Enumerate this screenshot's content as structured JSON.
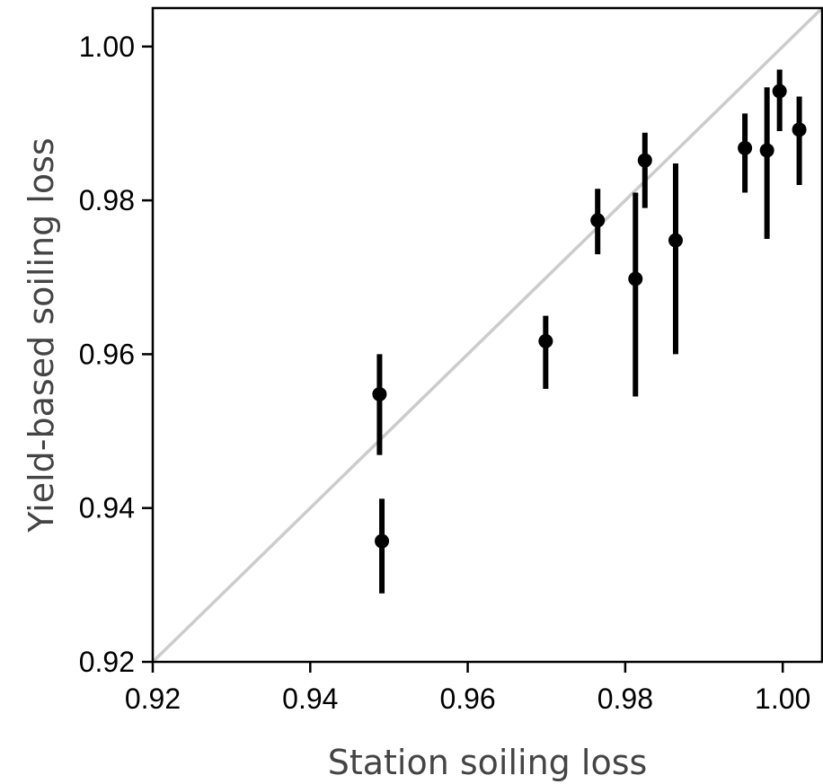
{
  "chart_data": {
    "type": "scatter",
    "xlabel": "Station soiling loss",
    "ylabel": "Yield-based soiling loss",
    "xlim": [
      0.92,
      1.005
    ],
    "ylim": [
      0.92,
      1.005
    ],
    "x_ticks": [
      "0.92",
      "0.94",
      "0.96",
      "0.98",
      "1.00"
    ],
    "y_ticks": [
      "0.92",
      "0.94",
      "0.96",
      "0.98",
      "1.00"
    ],
    "x_tick_values": [
      0.92,
      0.94,
      0.96,
      0.98,
      1.0
    ],
    "y_tick_values": [
      0.92,
      0.94,
      0.96,
      0.98,
      1.0
    ],
    "grid": false,
    "reference_line": {
      "from": [
        0.92,
        0.92
      ],
      "to": [
        1.005,
        1.005
      ],
      "color": "#cccccc"
    },
    "marker_color": "#000000",
    "points": [
      {
        "x": 0.9488,
        "y": 0.9548,
        "y_low": 0.9469,
        "y_high": 0.96
      },
      {
        "x": 0.9491,
        "y": 0.9357,
        "y_low": 0.9289,
        "y_high": 0.9412
      },
      {
        "x": 0.9699,
        "y": 0.9617,
        "y_low": 0.9555,
        "y_high": 0.965
      },
      {
        "x": 0.9765,
        "y": 0.9774,
        "y_low": 0.973,
        "y_high": 0.9815
      },
      {
        "x": 0.9813,
        "y": 0.9698,
        "y_low": 0.9545,
        "y_high": 0.981
      },
      {
        "x": 0.9825,
        "y": 0.9852,
        "y_low": 0.979,
        "y_high": 0.9888
      },
      {
        "x": 0.9864,
        "y": 0.9748,
        "y_low": 0.96,
        "y_high": 0.9848
      },
      {
        "x": 0.9952,
        "y": 0.9868,
        "y_low": 0.981,
        "y_high": 0.9913
      },
      {
        "x": 0.998,
        "y": 0.9865,
        "y_low": 0.975,
        "y_high": 0.9947
      },
      {
        "x": 0.9996,
        "y": 0.9942,
        "y_low": 0.989,
        "y_high": 0.997
      },
      {
        "x": 1.0021,
        "y": 0.9892,
        "y_low": 0.982,
        "y_high": 0.9935
      }
    ]
  }
}
